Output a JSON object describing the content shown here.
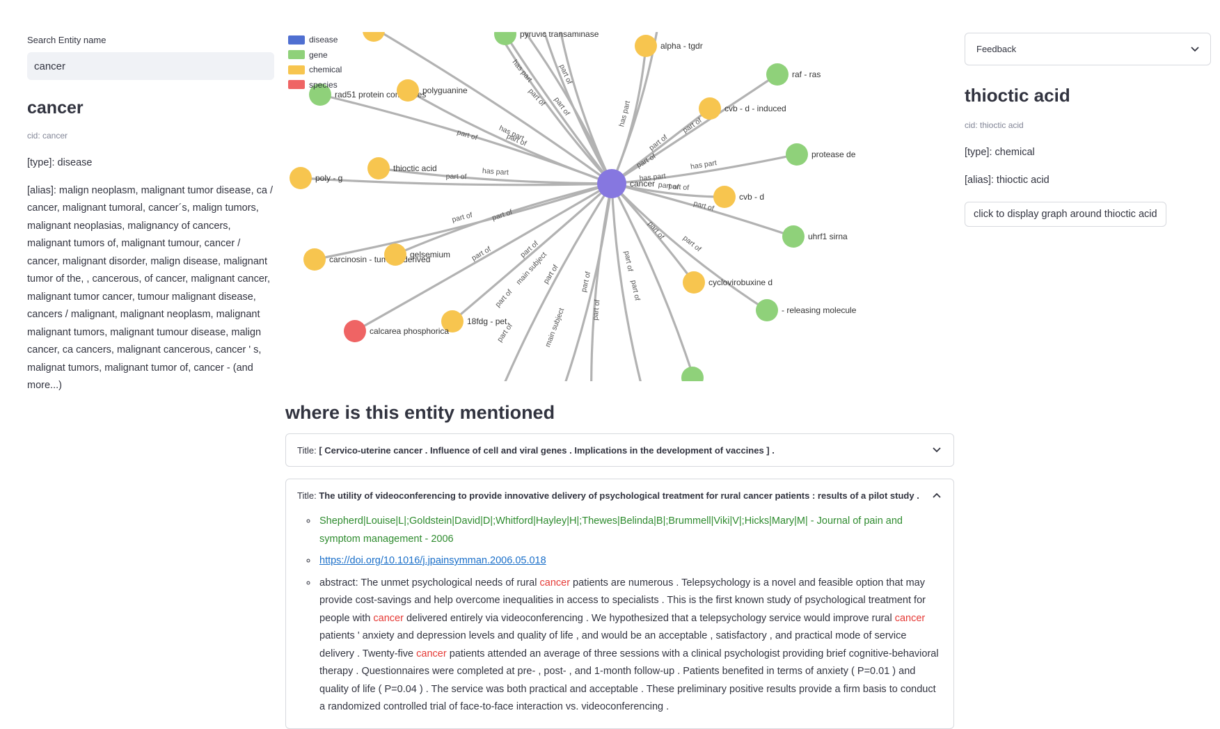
{
  "search": {
    "label": "Search Entity name",
    "value": "cancer"
  },
  "entity": {
    "name": "cancer",
    "cid": "cid: cancer",
    "type": "[type]: disease",
    "alias": "[alias]: malign neoplasm, malignant tumor disease, ca / cancer, malignant tumoral, cancer´s, malign tumors, malignant neoplasias, malignancy of cancers, malignant tumors of, malignant tumour, cancer / cancer, malignant disorder, malign disease, malignant tumor of the, , cancerous, of cancer, malignant cancer, malignant tumor cancer, tumour malignant disease, cancers / malignant, malignant neoplasm, malignant malignant tumors, malignant tumour disease, malign cancer, ca cancers, malignant cancerous, cancer ' s, malignat tumors, malignant tumor of, cancer - (and more...)"
  },
  "legend": [
    {
      "label": "disease",
      "color": "#4f6fd1"
    },
    {
      "label": "gene",
      "color": "#8fd17a"
    },
    {
      "label": "chemical",
      "color": "#f7c54f"
    },
    {
      "label": "species",
      "color": "#ef6464"
    }
  ],
  "graph": {
    "center": {
      "label": "cancer",
      "color": "#8677e0"
    },
    "nodes": [
      {
        "label": "pyruvic transaminase",
        "kind": "gene",
        "edge": "part of"
      },
      {
        "label": "alpha - tgdr",
        "kind": "chemical",
        "edge": "has part"
      },
      {
        "label": "raf - ras",
        "kind": "gene",
        "edge": "part of"
      },
      {
        "label": "cvb - d - induced",
        "kind": "chemical",
        "edge": "part of"
      },
      {
        "label": "protease de",
        "kind": "gene",
        "edge": "has part"
      },
      {
        "label": "cvb - d",
        "kind": "chemical",
        "edge": "part of"
      },
      {
        "label": "uhrf1 sirna",
        "kind": "gene",
        "edge": "part of"
      },
      {
        "label": "cyclovirobuxine d",
        "kind": "chemical",
        "edge": "part of"
      },
      {
        "label": "- releasing molecule",
        "kind": "gene",
        "edge": "part of"
      },
      {
        "label": "18fdg - pet",
        "kind": "chemical",
        "edge": "part of"
      },
      {
        "label": "calcarea phosphorica",
        "kind": "species",
        "edge": "part of"
      },
      {
        "label": "carcinosin - tumor - derived",
        "kind": "chemical",
        "edge": "part of"
      },
      {
        "label": "gelsemium",
        "kind": "chemical",
        "edge": "part of"
      },
      {
        "label": "poly - g",
        "kind": "chemical",
        "edge": "part of"
      },
      {
        "label": "thioctic acid",
        "kind": "chemical",
        "edge": "has part"
      },
      {
        "label": "rad51 protein complexes",
        "kind": "gene",
        "edge": "part of"
      },
      {
        "label": "polyguanine",
        "kind": "chemical",
        "edge": "has part"
      }
    ],
    "extra_edge_labels": [
      "has part",
      "part of",
      "part of",
      "part of",
      "main subject",
      "main subject",
      "part of",
      "part of",
      "part of",
      "part of",
      "part of",
      "part of",
      "part of",
      "has part",
      "part of",
      "part of"
    ]
  },
  "mentions": {
    "heading": "where is this entity mentioned",
    "title_prefix": "Title:",
    "items": [
      {
        "title": "[ Cervico-uterine cancer . Influence of cell and viral genes . Implications in the development of vaccines ] .",
        "expanded": false
      },
      {
        "title": "The utility of videoconferencing to provide innovative delivery of psychological treatment for rural cancer patients : results of a pilot study .",
        "expanded": true,
        "authors": "Shepherd|Louise|L|;Goldstein|David|D|;Whitford|Hayley|H|;Thewes|Belinda|B|;Brummell|Viki|V|;Hicks|Mary|M| - Journal of pain and symptom management - 2006",
        "doi": "https://doi.org/10.1016/j.jpainsymman.2006.05.018",
        "abstract": {
          "p0": "abstract: The unmet psychological needs of rural ",
          "p1": " patients are numerous . Telepsychology is a novel and feasible option that may provide cost-savings and help overcome inequalities in access to specialists . This is the first known study of psychological treatment for people with ",
          "p2": " delivered entirely via videoconferencing . We hypothesized that a telepsychology service would improve rural ",
          "p3": " patients ' anxiety and depression levels and quality of life , and would be an acceptable , satisfactory , and practical mode of service delivery . Twenty-five ",
          "p4": " patients attended an average of three sessions with a clinical psychologist providing brief cognitive-behavioral therapy . Questionnaires were completed at pre- , post- , and 1-month follow-up . Patients benefited in terms of anxiety ( P=0.01 ) and quality of life ( P=0.04 ) . The service was both practical and acceptable . These preliminary positive results provide a firm basis to conduct a randomized controlled trial of face-to-face interaction vs. videoconferencing .",
          "highlight": "cancer"
        }
      }
    ]
  },
  "right": {
    "select_value": "Feedback",
    "title": "thioctic acid",
    "cid": "cid: thioctic acid",
    "type": "[type]: chemical",
    "alias": "[alias]: thioctic acid",
    "button": "click to display graph around thioctic acid"
  }
}
